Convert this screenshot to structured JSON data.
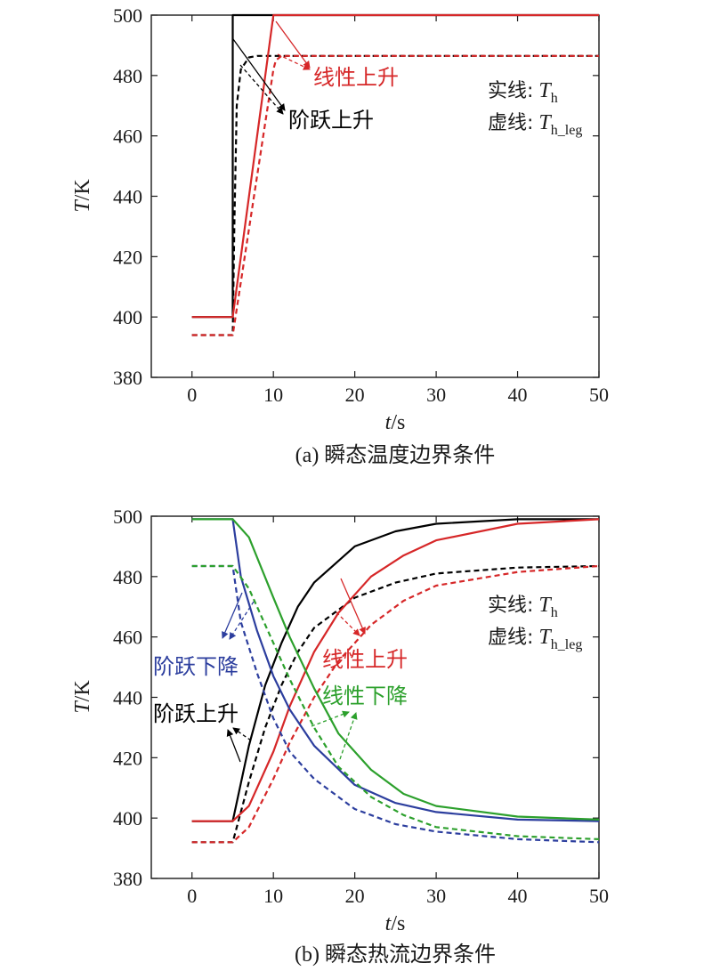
{
  "chart_data": [
    {
      "type": "line",
      "caption": "(a) 瞬态温度边界条件",
      "xlabel_var": "t",
      "xlabel_unit": "/s",
      "ylabel_var": "T",
      "ylabel_unit": "/K",
      "xlim": [
        -5,
        50
      ],
      "ylim": [
        380,
        500
      ],
      "xticks": [
        "0",
        "10",
        "20",
        "30",
        "40",
        "50"
      ],
      "yticks": [
        "380",
        "400",
        "420",
        "440",
        "460",
        "480",
        "500"
      ],
      "legend": {
        "solid_label": "实线:",
        "solid_symbol": "T",
        "solid_sub": "h",
        "dashed_label": "虚线:",
        "dashed_symbol": "T",
        "dashed_sub": "h_leg"
      },
      "annotations": [
        {
          "text": "线性上升",
          "color": "#d62728"
        },
        {
          "text": "阶跃上升",
          "color": "#000000"
        }
      ],
      "series": [
        {
          "name": "阶跃上升 T_h",
          "color": "#000000",
          "dash": false,
          "x": [
            0,
            5,
            5,
            50
          ],
          "y": [
            400,
            400,
            500,
            500
          ]
        },
        {
          "name": "阶跃上升 T_h_leg",
          "color": "#000000",
          "dash": true,
          "x": [
            0,
            5,
            5.2,
            5.5,
            6,
            7,
            8,
            50
          ],
          "y": [
            394,
            394,
            430,
            470,
            482,
            486,
            486.5,
            486.5
          ]
        },
        {
          "name": "线性上升 T_h",
          "color": "#d62728",
          "dash": false,
          "x": [
            0,
            5,
            10,
            50
          ],
          "y": [
            400,
            400,
            500,
            500
          ]
        },
        {
          "name": "线性上升 T_h_leg",
          "color": "#d62728",
          "dash": true,
          "x": [
            0,
            5,
            10,
            10.3,
            11,
            50
          ],
          "y": [
            394,
            394,
            482,
            485,
            486.5,
            486.5
          ]
        }
      ]
    },
    {
      "type": "line",
      "caption": "(b) 瞬态热流边界条件",
      "xlabel_var": "t",
      "xlabel_unit": "/s",
      "ylabel_var": "T",
      "ylabel_unit": "/K",
      "xlim": [
        -5,
        50
      ],
      "ylim": [
        380,
        500
      ],
      "xticks": [
        "0",
        "10",
        "20",
        "30",
        "40",
        "50"
      ],
      "yticks": [
        "380",
        "400",
        "420",
        "440",
        "460",
        "480",
        "500"
      ],
      "legend": {
        "solid_label": "实线:",
        "solid_symbol": "T",
        "solid_sub": "h",
        "dashed_label": "虚线:",
        "dashed_symbol": "T",
        "dashed_sub": "h_leg"
      },
      "annotations": [
        {
          "text": "阶跃下降",
          "color": "#2c3e9e"
        },
        {
          "text": "阶跃上升",
          "color": "#000000"
        },
        {
          "text": "线性上升",
          "color": "#d62728"
        },
        {
          "text": "线性下降",
          "color": "#2ca02c"
        }
      ],
      "series": [
        {
          "name": "阶跃上升 T_h",
          "color": "#000000",
          "dash": false,
          "x": [
            0,
            5,
            7,
            9,
            11,
            13,
            15,
            20,
            25,
            30,
            40,
            50
          ],
          "y": [
            399,
            399,
            424,
            444,
            458,
            470,
            478,
            490,
            495,
            497.5,
            499,
            499
          ]
        },
        {
          "name": "阶跃上升 T_h_leg",
          "color": "#000000",
          "dash": true,
          "x": [
            0,
            5,
            7,
            9,
            11,
            13,
            15,
            20,
            25,
            30,
            40,
            50
          ],
          "y": [
            392,
            392,
            412,
            430,
            444,
            455,
            463,
            473,
            478,
            481,
            483,
            483.5
          ]
        },
        {
          "name": "线性上升 T_h",
          "color": "#d62728",
          "dash": false,
          "x": [
            0,
            5,
            7,
            10,
            12,
            15,
            18,
            22,
            26,
            30,
            40,
            50
          ],
          "y": [
            399,
            399,
            404,
            422,
            437,
            455,
            468,
            480,
            487,
            492,
            497.5,
            499
          ]
        },
        {
          "name": "线性上升 T_h_leg",
          "color": "#d62728",
          "dash": true,
          "x": [
            0,
            5,
            7,
            10,
            12,
            15,
            18,
            22,
            26,
            30,
            40,
            50
          ],
          "y": [
            392,
            392,
            397,
            413,
            425,
            440,
            452,
            464,
            472,
            477,
            481.5,
            483.5
          ]
        },
        {
          "name": "阶跃下降 T_h",
          "color": "#2c3e9e",
          "dash": false,
          "x": [
            0,
            5,
            6,
            8,
            10,
            12,
            15,
            20,
            25,
            30,
            40,
            50
          ],
          "y": [
            499,
            499,
            480,
            462,
            447,
            436,
            424,
            411,
            405,
            402,
            399.5,
            399
          ]
        },
        {
          "name": "阶跃下降 T_h_leg",
          "color": "#2c3e9e",
          "dash": true,
          "x": [
            0,
            5,
            6,
            8,
            10,
            12,
            15,
            20,
            25,
            30,
            40,
            50
          ],
          "y": [
            483.5,
            483.5,
            465,
            448,
            433,
            422,
            413,
            403,
            398,
            395.5,
            393,
            392
          ]
        },
        {
          "name": "线性下降 T_h",
          "color": "#2ca02c",
          "dash": false,
          "x": [
            0,
            5,
            7,
            10,
            12,
            15,
            18,
            22,
            26,
            30,
            40,
            50
          ],
          "y": [
            499,
            499,
            493,
            473,
            460,
            443,
            428,
            416,
            408,
            404,
            400.5,
            399.5
          ]
        },
        {
          "name": "线性下降 T_h_leg",
          "color": "#2ca02c",
          "dash": true,
          "x": [
            0,
            5,
            7,
            10,
            12,
            15,
            18,
            22,
            26,
            30,
            40,
            50
          ],
          "y": [
            483.5,
            483.5,
            476,
            458,
            446,
            430,
            417,
            407,
            401,
            397,
            394,
            393
          ]
        }
      ]
    }
  ]
}
